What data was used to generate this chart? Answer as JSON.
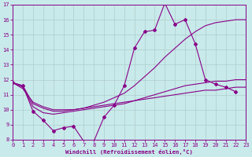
{
  "xlabel": "Windchill (Refroidissement éolien,°C)",
  "xlim": [
    0,
    23
  ],
  "ylim": [
    8,
    17
  ],
  "xticks": [
    0,
    1,
    2,
    3,
    4,
    5,
    6,
    7,
    8,
    9,
    10,
    11,
    12,
    13,
    14,
    15,
    16,
    17,
    18,
    19,
    20,
    21,
    22,
    23
  ],
  "yticks": [
    8,
    9,
    10,
    11,
    12,
    13,
    14,
    15,
    16,
    17
  ],
  "background_color": "#c8eaea",
  "grid_color": "#b0cccc",
  "line_color": "#880088",
  "curve1_x": [
    0,
    1,
    2,
    3,
    4,
    5,
    6,
    7,
    8,
    9,
    10,
    11,
    12,
    13,
    14,
    15,
    16,
    17,
    18,
    19,
    20,
    21,
    22
  ],
  "curve1_y": [
    11.8,
    11.6,
    9.9,
    9.3,
    8.6,
    8.8,
    8.9,
    7.9,
    7.9,
    9.5,
    10.3,
    11.6,
    14.1,
    15.2,
    15.3,
    17.1,
    15.7,
    16.0,
    14.4,
    12.0,
    11.7,
    11.5,
    11.2
  ],
  "curve2_x": [
    0,
    1,
    2,
    3,
    4,
    5,
    6,
    7,
    8,
    9,
    10,
    11,
    12,
    13,
    14,
    15,
    16,
    17,
    18,
    19,
    20,
    21,
    22,
    23
  ],
  "curve2_y": [
    11.8,
    11.4,
    10.5,
    10.2,
    10.0,
    10.0,
    10.0,
    10.1,
    10.3,
    10.5,
    10.8,
    11.1,
    11.6,
    12.2,
    12.8,
    13.5,
    14.1,
    14.7,
    15.2,
    15.6,
    15.8,
    15.9,
    16.0,
    16.0
  ],
  "curve3_x": [
    0,
    1,
    2,
    3,
    4,
    5,
    6,
    7,
    8,
    9,
    10,
    11,
    12,
    13,
    14,
    15,
    16,
    17,
    18,
    19,
    20,
    21,
    22,
    23
  ],
  "curve3_y": [
    11.8,
    11.6,
    10.4,
    10.1,
    9.9,
    9.9,
    10.0,
    10.1,
    10.2,
    10.3,
    10.4,
    10.5,
    10.6,
    10.7,
    10.8,
    10.9,
    11.0,
    11.1,
    11.2,
    11.3,
    11.3,
    11.4,
    11.5,
    11.5
  ],
  "curve4_x": [
    0,
    1,
    2,
    3,
    4,
    5,
    6,
    7,
    8,
    9,
    10,
    11,
    12,
    13,
    14,
    15,
    16,
    17,
    18,
    19,
    20,
    21,
    22,
    23
  ],
  "curve4_y": [
    11.8,
    11.5,
    10.2,
    9.8,
    9.7,
    9.8,
    9.9,
    10.0,
    10.1,
    10.2,
    10.3,
    10.4,
    10.6,
    10.8,
    11.0,
    11.2,
    11.4,
    11.6,
    11.7,
    11.8,
    11.9,
    11.9,
    12.0,
    12.0
  ]
}
